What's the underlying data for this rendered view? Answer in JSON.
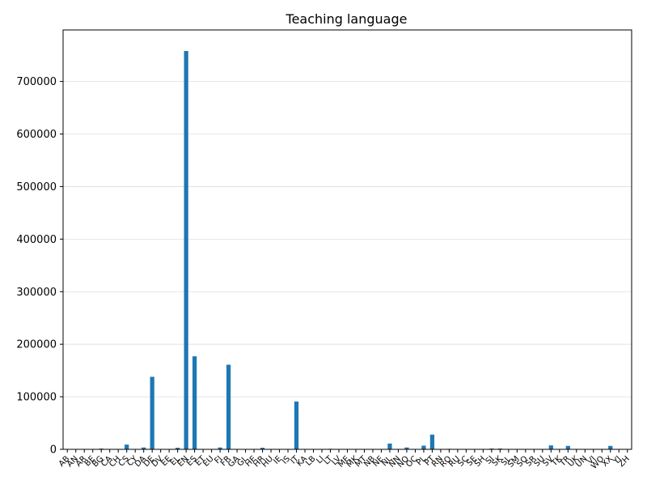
{
  "chart_data": {
    "type": "bar",
    "title": "Teaching language",
    "xlabel": "",
    "ylabel": "",
    "ylim": [
      0,
      798000
    ],
    "yticks": [
      0,
      100000,
      200000,
      300000,
      400000,
      500000,
      600000,
      700000
    ],
    "grid": "y",
    "legend": "none",
    "bar_color": "#1f77b4",
    "categories": [
      "AB",
      "AN",
      "AR",
      "BE",
      "BG",
      "CA",
      "CH",
      "CS",
      "CY",
      "DA",
      "DE",
      "DV",
      "EE",
      "EL",
      "EN",
      "ES",
      "ET",
      "EU",
      "FI",
      "FR",
      "GA",
      "GL",
      "HE",
      "HR",
      "HU",
      "IE",
      "IS",
      "IT",
      "KA",
      "LB",
      "LI",
      "LT",
      "LV",
      "ME",
      "MK",
      "MT",
      "NB",
      "NE",
      "NL",
      "NN",
      "NO",
      "OC",
      "PL",
      "PT",
      "RN",
      "RO",
      "RU",
      "SC",
      "SE",
      "SH",
      "SI",
      "SK",
      "SL",
      "SM",
      "SO",
      "SR",
      "SU",
      "SV",
      "TK",
      "TR",
      "UK",
      "UN",
      "VI",
      "WO",
      "XX",
      "YI",
      "ZH"
    ],
    "values": [
      0,
      0,
      0,
      0,
      1500,
      0,
      0,
      9000,
      0,
      3500,
      138000,
      0,
      0,
      3000,
      758000,
      177000,
      0,
      0,
      3500,
      161000,
      0,
      0,
      0,
      3000,
      0,
      0,
      0,
      91000,
      0,
      0,
      0,
      1000,
      0,
      0,
      0,
      0,
      0,
      0,
      11000,
      0,
      3500,
      0,
      7000,
      28000,
      0,
      1000,
      0,
      0,
      0,
      0,
      1500,
      1500,
      0,
      0,
      0,
      0,
      0,
      7500,
      0,
      6500,
      0,
      0,
      0,
      0,
      6500,
      0,
      0
    ]
  }
}
